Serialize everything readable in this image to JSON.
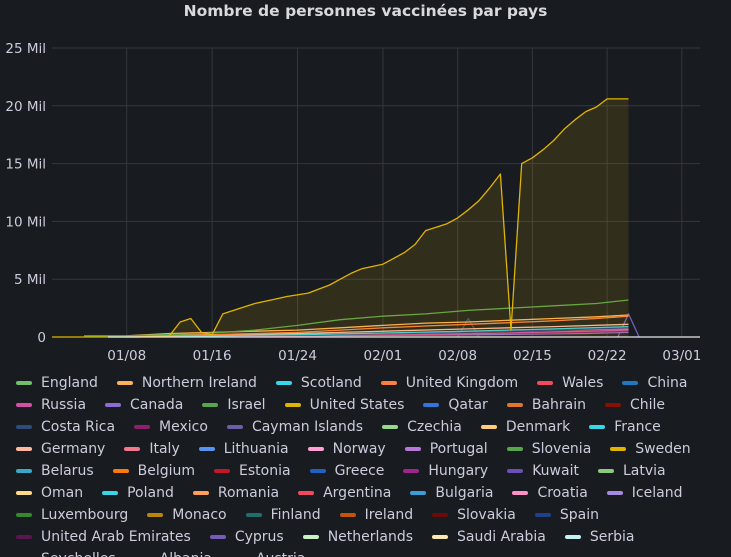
{
  "chart_data": {
    "type": "line",
    "title": "Nombre de personnes vaccinées par pays",
    "xlabel": "",
    "ylabel": "",
    "x_ticks": [
      "01/08",
      "01/16",
      "01/24",
      "02/01",
      "02/08",
      "02/15",
      "02/22",
      "03/01"
    ],
    "y_ticks": [
      "0",
      "5 Mil",
      "10 Mil",
      "15 Mil",
      "20 Mil",
      "25 Mil"
    ],
    "ylim": [
      0,
      25
    ],
    "y_unit": "Mil",
    "grid": true,
    "legend_position": "bottom",
    "series": [
      {
        "name": "United States",
        "color": "#e0b400",
        "fill": true,
        "x": [
          "01/01",
          "01/03",
          "01/04",
          "01/06",
          "01/09",
          "01/12",
          "01/13",
          "01/14",
          "01/15",
          "01/16",
          "01/17",
          "01/18",
          "01/20",
          "01/22",
          "01/23",
          "01/25",
          "01/27",
          "01/28",
          "01/29",
          "01/30",
          "01/31",
          "02/01",
          "02/02",
          "02/03",
          "02/04",
          "02/05",
          "02/07",
          "02/08",
          "02/09",
          "02/10",
          "02/11",
          "02/12",
          "02/13",
          "02/14",
          "02/15",
          "02/16",
          "02/17",
          "02/18",
          "02/19",
          "02/20",
          "02/21",
          "02/22",
          "02/23",
          "02/24"
        ],
        "values": [
          0,
          0,
          0,
          0,
          0,
          0.1,
          1.3,
          1.6,
          0.4,
          0.2,
          2.0,
          2.3,
          2.9,
          3.3,
          3.5,
          3.8,
          4.5,
          5.0,
          5.5,
          5.9,
          6.1,
          6.3,
          6.8,
          7.3,
          8.0,
          9.2,
          9.8,
          10.3,
          11.0,
          11.8,
          12.9,
          14.1,
          0.6,
          15.0,
          15.5,
          16.2,
          17.0,
          18.0,
          18.8,
          19.5,
          19.9,
          20.6,
          20.6,
          20.6
        ]
      },
      {
        "name": "Israel",
        "color": "#56a64b",
        "x": [
          "01/04",
          "01/08",
          "01/12",
          "01/16",
          "01/20",
          "01/24",
          "01/28",
          "02/01",
          "02/05",
          "02/09",
          "02/13",
          "02/17",
          "02/21",
          "02/24"
        ],
        "values": [
          0.1,
          0.1,
          0.2,
          0.35,
          0.6,
          1.0,
          1.5,
          1.8,
          2.0,
          2.3,
          2.5,
          2.7,
          2.9,
          3.2
        ]
      },
      {
        "name": "United Kingdom",
        "color": "#ff7f3f",
        "x": [
          "01/08",
          "01/12",
          "01/16",
          "01/20",
          "01/24",
          "01/28",
          "02/01",
          "02/05",
          "02/09",
          "02/13",
          "02/17",
          "02/21",
          "02/24"
        ],
        "values": [
          0.0,
          0.1,
          0.2,
          0.3,
          0.4,
          0.6,
          0.8,
          0.95,
          1.1,
          1.25,
          1.4,
          1.6,
          1.8
        ]
      },
      {
        "name": "Northern Ireland",
        "color": "#ffb357",
        "x": [
          "01/08",
          "01/12",
          "01/16",
          "01/20",
          "01/24",
          "01/28",
          "02/01",
          "02/05",
          "02/09",
          "02/13",
          "02/17",
          "02/21",
          "02/24"
        ],
        "values": [
          0.1,
          0.3,
          0.4,
          0.5,
          0.6,
          0.8,
          1.0,
          1.2,
          1.3,
          1.45,
          1.6,
          1.75,
          1.9
        ]
      },
      {
        "name": "Germany",
        "color": "#ffb8a0",
        "x": [
          "01/08",
          "01/16",
          "01/24",
          "02/01",
          "02/09",
          "02/17",
          "02/24"
        ],
        "values": [
          0.1,
          0.2,
          0.3,
          0.5,
          0.7,
          0.9,
          1.1
        ]
      },
      {
        "name": "France",
        "color": "#37d6e8",
        "x": [
          "01/08",
          "01/16",
          "01/24",
          "02/01",
          "02/09",
          "02/17",
          "02/24"
        ],
        "values": [
          0.05,
          0.1,
          0.2,
          0.35,
          0.5,
          0.7,
          0.9
        ]
      },
      {
        "name": "Spain",
        "color": "#1f3f8f",
        "x": [
          "01/08",
          "01/16",
          "01/24",
          "02/01",
          "02/09",
          "02/17",
          "02/24"
        ],
        "values": [
          0.05,
          0.1,
          0.15,
          0.3,
          0.45,
          0.6,
          0.8
        ]
      },
      {
        "name": "Italy",
        "color": "#f2798b",
        "x": [
          "01/08",
          "01/16",
          "01/24",
          "02/01",
          "02/09",
          "02/17",
          "02/24"
        ],
        "values": [
          0.05,
          0.1,
          0.2,
          0.3,
          0.45,
          0.6,
          0.7
        ]
      },
      {
        "name": "Russia",
        "color": "#d44fa8",
        "x": [
          "01/10",
          "01/20",
          "02/01",
          "02/10",
          "02/20",
          "02/24"
        ],
        "values": [
          0.05,
          0.1,
          0.15,
          0.3,
          0.5,
          0.6
        ]
      },
      {
        "name": "Mexico",
        "color": "#8f1e6b",
        "x": [
          "01/08",
          "01/20",
          "02/01",
          "02/09",
          "02/17",
          "02/24"
        ],
        "values": [
          0.05,
          0.1,
          0.2,
          0.3,
          0.35,
          0.5
        ]
      },
      {
        "name": "Canada",
        "color": "#8f6bd4",
        "x": [
          "01/08",
          "01/20",
          "02/01",
          "02/10",
          "02/20",
          "02/24"
        ],
        "values": [
          0.05,
          0.1,
          0.15,
          0.2,
          0.3,
          0.4
        ]
      },
      {
        "name": "Costa Rica",
        "color": "#2f4b7c",
        "x": [
          "02/08",
          "02/09",
          "02/10"
        ],
        "values": [
          0.0,
          1.6,
          0.0
        ]
      },
      {
        "name": "Cyprus",
        "color": "#7a5ab8",
        "x": [
          "02/23",
          "02/24",
          "02/25"
        ],
        "values": [
          0.0,
          2.0,
          0.0
        ]
      }
    ],
    "legend": [
      {
        "name": "England",
        "color": "#73bf69"
      },
      {
        "name": "Northern Ireland",
        "color": "#ffb357"
      },
      {
        "name": "Scotland",
        "color": "#37d6e8"
      },
      {
        "name": "United Kingdom",
        "color": "#ff7f3f"
      },
      {
        "name": "Wales",
        "color": "#f2495c"
      },
      {
        "name": "China",
        "color": "#1f78c1"
      },
      {
        "name": "Russia",
        "color": "#d44fa8"
      },
      {
        "name": "Canada",
        "color": "#8f6bd4"
      },
      {
        "name": "Israel",
        "color": "#56a64b"
      },
      {
        "name": "United States",
        "color": "#e0b400"
      },
      {
        "name": "Qatar",
        "color": "#3274d9"
      },
      {
        "name": "Bahrain",
        "color": "#e0752d"
      },
      {
        "name": "Chile",
        "color": "#890f02"
      },
      {
        "name": "Costa Rica",
        "color": "#2f4b7c"
      },
      {
        "name": "Mexico",
        "color": "#8f1e6b"
      },
      {
        "name": "Cayman Islands",
        "color": "#6c5ea8"
      },
      {
        "name": "Czechia",
        "color": "#96d98d"
      },
      {
        "name": "Denmark",
        "color": "#ffcb7d"
      },
      {
        "name": "France",
        "color": "#37d6e8"
      },
      {
        "name": "Germany",
        "color": "#ffb8a0"
      },
      {
        "name": "Italy",
        "color": "#f2798b"
      },
      {
        "name": "Lithuania",
        "color": "#5794f2"
      },
      {
        "name": "Norway",
        "color": "#ff9fd3"
      },
      {
        "name": "Portugal",
        "color": "#b877d9"
      },
      {
        "name": "Slovenia",
        "color": "#56a64b"
      },
      {
        "name": "Sweden",
        "color": "#e0b400"
      },
      {
        "name": "Belarus",
        "color": "#37a8c9"
      },
      {
        "name": "Belgium",
        "color": "#ff780a"
      },
      {
        "name": "Estonia",
        "color": "#c4162a"
      },
      {
        "name": "Greece",
        "color": "#1f60c4"
      },
      {
        "name": "Hungary",
        "color": "#a0248c"
      },
      {
        "name": "Kuwait",
        "color": "#6a4fb8"
      },
      {
        "name": "Latvia",
        "color": "#8ac97f"
      },
      {
        "name": "Oman",
        "color": "#ffd98a"
      },
      {
        "name": "Poland",
        "color": "#37d6e8"
      },
      {
        "name": "Romania",
        "color": "#ff9f5a"
      },
      {
        "name": "Argentina",
        "color": "#f2495c"
      },
      {
        "name": "Bulgaria",
        "color": "#3a9ed9"
      },
      {
        "name": "Croatia",
        "color": "#ff8fc7"
      },
      {
        "name": "Iceland",
        "color": "#a58be0"
      },
      {
        "name": "Luxembourg",
        "color": "#37872d"
      },
      {
        "name": "Monaco",
        "color": "#b8860b"
      },
      {
        "name": "Finland",
        "color": "#1f6f6f"
      },
      {
        "name": "Ireland",
        "color": "#c4540a"
      },
      {
        "name": "Slovakia",
        "color": "#6b0a0a"
      },
      {
        "name": "Spain",
        "color": "#1f3f8f"
      },
      {
        "name": "United Arab Emirates",
        "color": "#5a1450"
      },
      {
        "name": "Cyprus",
        "color": "#7a5ab8"
      },
      {
        "name": "Netherlands",
        "color": "#c8f2c2"
      },
      {
        "name": "Saudi Arabia",
        "color": "#ffe6b0"
      },
      {
        "name": "Serbia",
        "color": "#c2f2f2"
      },
      {
        "name": "Seychelles",
        "color": "#ffd8c8"
      },
      {
        "name": "Albania",
        "color": "#ffd0d8"
      },
      {
        "name": "Austria",
        "color": "#c8dcff"
      }
    ]
  }
}
